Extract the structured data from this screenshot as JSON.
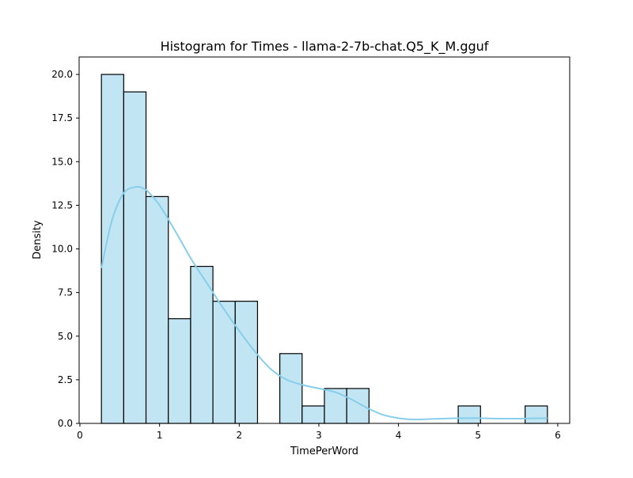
{
  "chart_data": {
    "type": "bar",
    "title": "Histogram for Times - llama-2-7b-chat.Q5_K_M.gguf",
    "xlabel": "TimePerWord",
    "ylabel": "Density",
    "xlim": [
      -0.01,
      6.15
    ],
    "ylim": [
      0,
      21
    ],
    "x_ticks": [
      0,
      1,
      2,
      3,
      4,
      5,
      6
    ],
    "y_ticks": [
      0.0,
      2.5,
      5.0,
      7.5,
      10.0,
      12.5,
      15.0,
      17.5,
      20.0
    ],
    "y_tick_labels": [
      "0.0",
      "2.5",
      "5.0",
      "7.5",
      "10.0",
      "12.5",
      "15.0",
      "17.5",
      "20.0"
    ],
    "grid": false,
    "bins": [
      {
        "x0": 0.27,
        "x1": 0.55,
        "value": 20
      },
      {
        "x0": 0.55,
        "x1": 0.83,
        "value": 19
      },
      {
        "x0": 0.83,
        "x1": 1.11,
        "value": 13
      },
      {
        "x0": 1.11,
        "x1": 1.39,
        "value": 6
      },
      {
        "x0": 1.39,
        "x1": 1.67,
        "value": 9
      },
      {
        "x0": 1.67,
        "x1": 1.95,
        "value": 7
      },
      {
        "x0": 1.95,
        "x1": 2.23,
        "value": 7
      },
      {
        "x0": 2.23,
        "x1": 2.51,
        "value": 0
      },
      {
        "x0": 2.51,
        "x1": 2.79,
        "value": 4
      },
      {
        "x0": 2.79,
        "x1": 3.07,
        "value": 1
      },
      {
        "x0": 3.07,
        "x1": 3.35,
        "value": 2
      },
      {
        "x0": 3.35,
        "x1": 3.63,
        "value": 2
      },
      {
        "x0": 3.63,
        "x1": 3.91,
        "value": 0
      },
      {
        "x0": 3.91,
        "x1": 4.19,
        "value": 0
      },
      {
        "x0": 4.19,
        "x1": 4.47,
        "value": 0
      },
      {
        "x0": 4.47,
        "x1": 4.75,
        "value": 0
      },
      {
        "x0": 4.75,
        "x1": 5.03,
        "value": 1
      },
      {
        "x0": 5.03,
        "x1": 5.31,
        "value": 0
      },
      {
        "x0": 5.31,
        "x1": 5.59,
        "value": 0
      },
      {
        "x0": 5.59,
        "x1": 5.87,
        "value": 1
      }
    ],
    "kde": {
      "x": [
        0.27,
        0.4,
        0.55,
        0.7,
        0.78,
        0.85,
        1.0,
        1.2,
        1.4,
        1.6,
        1.8,
        2.0,
        2.2,
        2.4,
        2.6,
        2.8,
        3.0,
        3.2,
        3.4,
        3.6,
        3.8,
        4.0,
        4.2,
        4.4,
        4.6,
        4.8,
        5.0,
        5.2,
        5.4,
        5.6,
        5.87
      ],
      "y": [
        8.9,
        11.6,
        13.2,
        13.55,
        13.5,
        13.3,
        12.5,
        11.0,
        9.4,
        8.0,
        6.6,
        5.3,
        4.1,
        3.1,
        2.5,
        2.2,
        2.0,
        1.8,
        1.4,
        0.9,
        0.5,
        0.3,
        0.22,
        0.25,
        0.28,
        0.3,
        0.3,
        0.28,
        0.27,
        0.28,
        0.3
      ]
    },
    "colors": {
      "bar_fill": "#c1e5f2",
      "bar_edge": "#000000",
      "kde_line": "#87ceeb"
    }
  }
}
